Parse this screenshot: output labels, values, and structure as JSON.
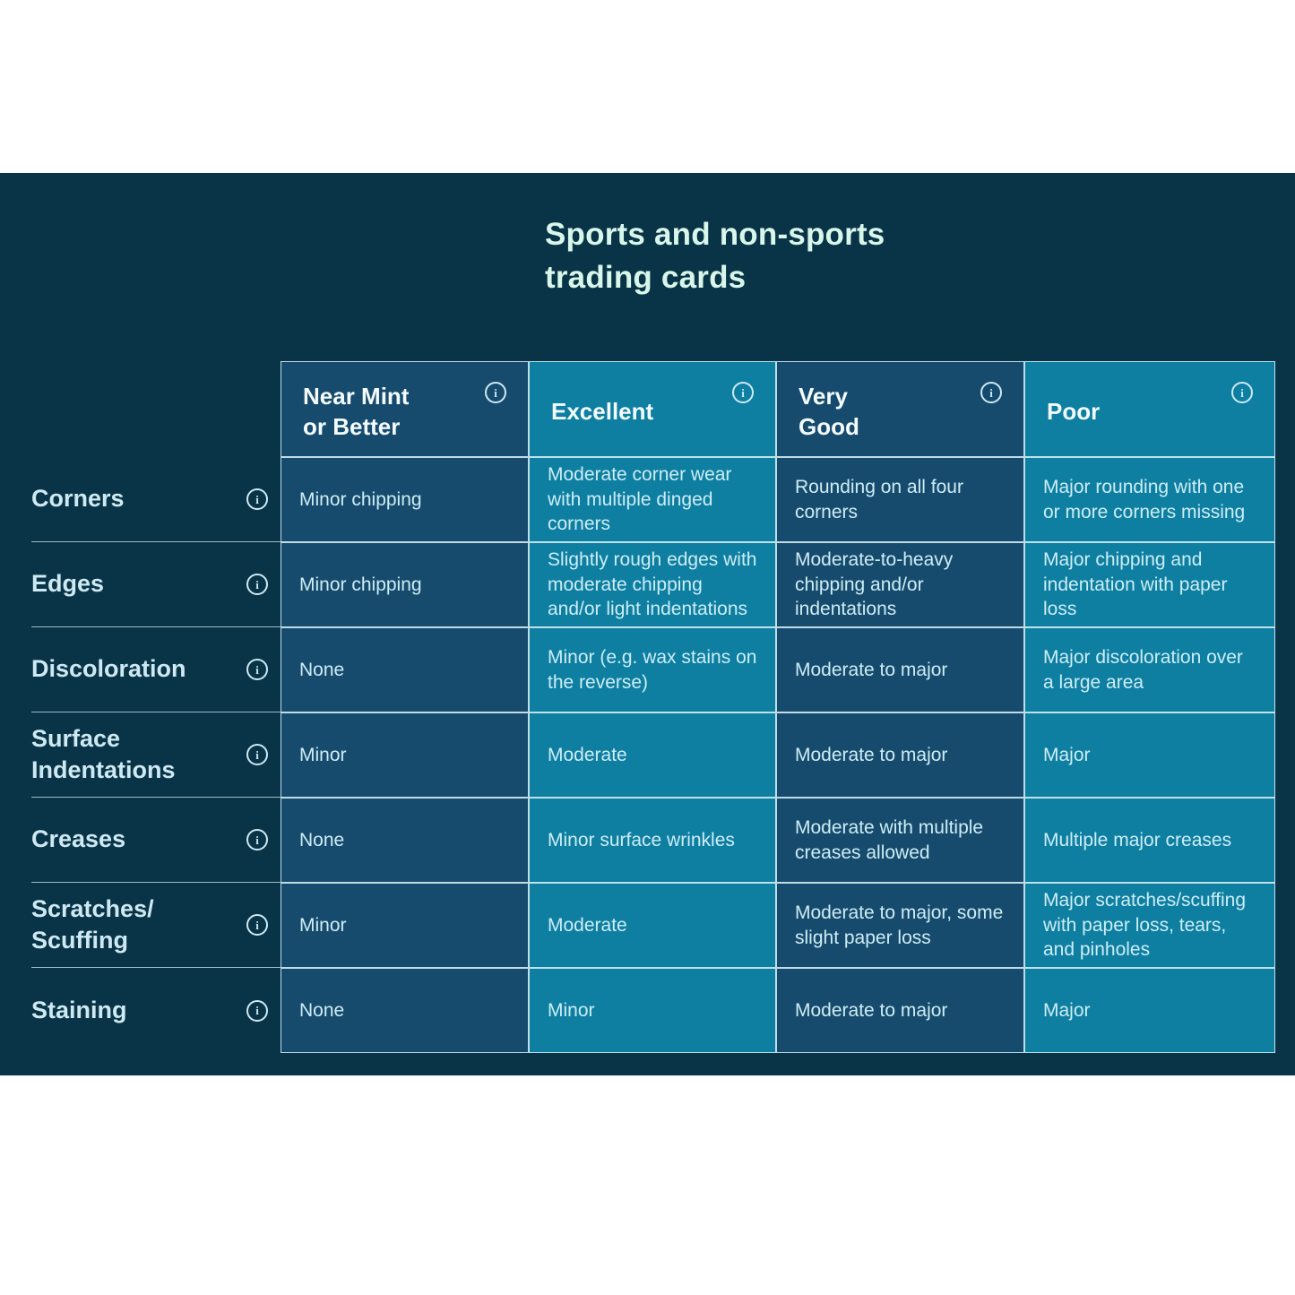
{
  "title": "Sports and non-sports\ntrading cards",
  "icons": {
    "info_glyph": "i"
  },
  "colors": {
    "panel_background": "#093447",
    "column_dark": "#174b6d",
    "column_teal": "#0e7fa1",
    "grid_line": "#d2ecf3",
    "title_text": "#d9f6ea",
    "header_text": "#f4fbfd",
    "label_text": "#cfe9f3",
    "cell_text": "#cdedf5",
    "page_background": "#ffffff"
  },
  "table": {
    "columns": [
      {
        "label": "Near Mint\nor Better",
        "tone": "dark"
      },
      {
        "label": "Excellent",
        "tone": "teal"
      },
      {
        "label": "Very\nGood",
        "tone": "dark"
      },
      {
        "label": "Poor",
        "tone": "teal"
      }
    ],
    "rows": [
      {
        "label": "Corners",
        "cells": [
          "Minor chipping",
          "Moderate corner wear with multiple dinged corners",
          "Rounding on all four corners",
          "Major rounding with one or more corners missing"
        ]
      },
      {
        "label": "Edges",
        "cells": [
          "Minor chipping",
          "Slightly rough edges with moderate chipping and/or light indentations",
          "Moderate-to-heavy chipping and/or indentations",
          "Major chipping and indentation with paper loss"
        ]
      },
      {
        "label": "Discoloration",
        "cells": [
          "None",
          "Minor (e.g. wax stains on the reverse)",
          "Moderate to major",
          "Major discoloration over a large area"
        ]
      },
      {
        "label": "Surface\nIndentations",
        "cells": [
          "Minor",
          "Moderate",
          "Moderate to major",
          "Major"
        ]
      },
      {
        "label": "Creases",
        "cells": [
          "None",
          "Minor surface wrinkles",
          "Moderate with multiple creases allowed",
          "Multiple major creases"
        ]
      },
      {
        "label": "Scratches/\nScuffing",
        "cells": [
          "Minor",
          "Moderate",
          "Moderate to major, some slight paper loss",
          "Major scratches/scuffing with paper loss, tears, and pinholes"
        ]
      },
      {
        "label": "Staining",
        "cells": [
          "None",
          "Minor",
          "Moderate to major",
          "Major"
        ]
      }
    ]
  }
}
